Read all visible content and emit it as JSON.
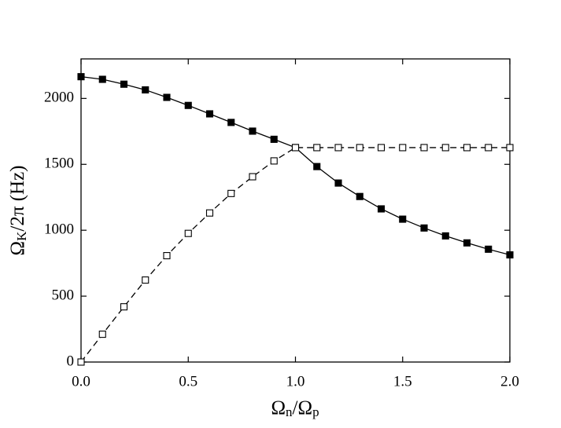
{
  "chart_data": {
    "type": "line",
    "xlabel_parts": [
      {
        "text": "Ω",
        "sub": false
      },
      {
        "text": "n",
        "sub": true
      },
      {
        "text": "/Ω",
        "sub": false
      },
      {
        "text": "p",
        "sub": true
      }
    ],
    "ylabel_parts": [
      {
        "text": "Ω",
        "sub": false
      },
      {
        "text": "K",
        "sub": true
      },
      {
        "text": "/2π (Hz)",
        "sub": false
      }
    ],
    "x": [
      0.0,
      0.1,
      0.2,
      0.3,
      0.4,
      0.5,
      0.6,
      0.7,
      0.8,
      0.9,
      1.0,
      1.1,
      1.2,
      1.3,
      1.4,
      1.5,
      1.6,
      1.7,
      1.8,
      1.9,
      2.0
    ],
    "series": [
      {
        "color": "#000000",
        "marker": "filled",
        "line": "solid",
        "values": [
          2165,
          2145,
          2108,
          2065,
          2008,
          1947,
          1883,
          1818,
          1752,
          1690,
          1627,
          1483,
          1358,
          1256,
          1162,
          1084,
          1017,
          957,
          904,
          856,
          813
        ]
      },
      {
        "color": "#000000",
        "marker": "open",
        "line": "dashed",
        "values": [
          0,
          211,
          419,
          622,
          807,
          976,
          1131,
          1279,
          1406,
          1526,
          1627,
          1627,
          1627,
          1627,
          1627,
          1627,
          1627,
          1627,
          1627,
          1627,
          1627
        ]
      }
    ],
    "xlim": [
      0,
      2
    ],
    "xticks": [
      {
        "value": 0,
        "label": "0.0"
      },
      0.5,
      {
        "value": 1,
        "label": "1.0"
      },
      1.5,
      {
        "value": 2,
        "label": "2.0"
      }
    ],
    "ylim": [
      0,
      2300
    ],
    "yticks": [
      0,
      500,
      1000,
      1500,
      2000
    ],
    "grid": false
  }
}
